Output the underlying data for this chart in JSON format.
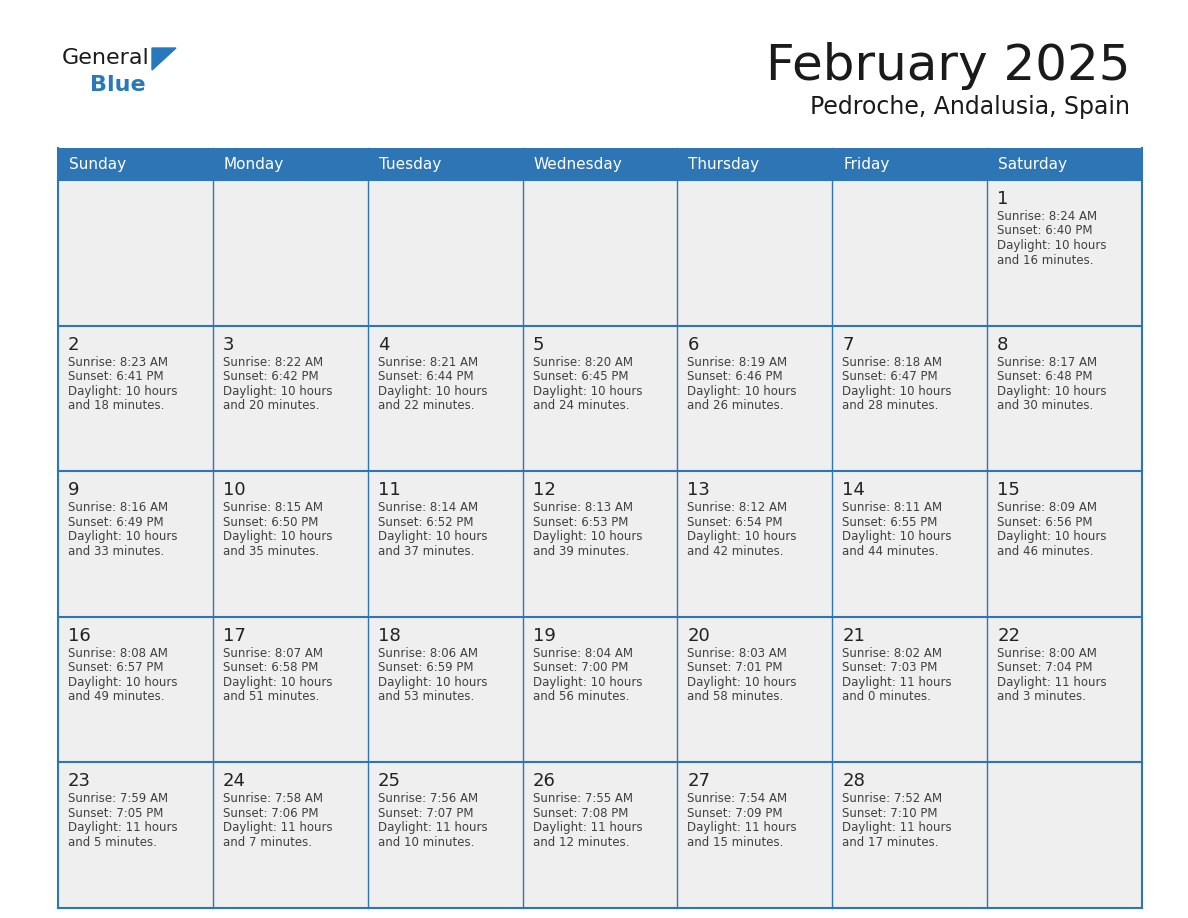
{
  "title": "February 2025",
  "subtitle": "Pedroche, Andalusia, Spain",
  "header_color": "#2E75B6",
  "header_text_color": "#FFFFFF",
  "cell_bg_color": "#EFEFEF",
  "border_color": "#2E75B6",
  "day_number_color": "#222222",
  "detail_text_color": "#404040",
  "title_color": "#1A1A1A",
  "days_of_week": [
    "Sunday",
    "Monday",
    "Tuesday",
    "Wednesday",
    "Thursday",
    "Friday",
    "Saturday"
  ],
  "logo_general_color": "#1A1A1A",
  "logo_blue_color": "#2779BD",
  "calendar_data": [
    [
      null,
      null,
      null,
      null,
      null,
      null,
      {
        "day": "1",
        "sunrise": "8:24 AM",
        "sunset": "6:40 PM",
        "daylight_line1": "Daylight: 10 hours",
        "daylight_line2": "and 16 minutes."
      }
    ],
    [
      {
        "day": "2",
        "sunrise": "8:23 AM",
        "sunset": "6:41 PM",
        "daylight_line1": "Daylight: 10 hours",
        "daylight_line2": "and 18 minutes."
      },
      {
        "day": "3",
        "sunrise": "8:22 AM",
        "sunset": "6:42 PM",
        "daylight_line1": "Daylight: 10 hours",
        "daylight_line2": "and 20 minutes."
      },
      {
        "day": "4",
        "sunrise": "8:21 AM",
        "sunset": "6:44 PM",
        "daylight_line1": "Daylight: 10 hours",
        "daylight_line2": "and 22 minutes."
      },
      {
        "day": "5",
        "sunrise": "8:20 AM",
        "sunset": "6:45 PM",
        "daylight_line1": "Daylight: 10 hours",
        "daylight_line2": "and 24 minutes."
      },
      {
        "day": "6",
        "sunrise": "8:19 AM",
        "sunset": "6:46 PM",
        "daylight_line1": "Daylight: 10 hours",
        "daylight_line2": "and 26 minutes."
      },
      {
        "day": "7",
        "sunrise": "8:18 AM",
        "sunset": "6:47 PM",
        "daylight_line1": "Daylight: 10 hours",
        "daylight_line2": "and 28 minutes."
      },
      {
        "day": "8",
        "sunrise": "8:17 AM",
        "sunset": "6:48 PM",
        "daylight_line1": "Daylight: 10 hours",
        "daylight_line2": "and 30 minutes."
      }
    ],
    [
      {
        "day": "9",
        "sunrise": "8:16 AM",
        "sunset": "6:49 PM",
        "daylight_line1": "Daylight: 10 hours",
        "daylight_line2": "and 33 minutes."
      },
      {
        "day": "10",
        "sunrise": "8:15 AM",
        "sunset": "6:50 PM",
        "daylight_line1": "Daylight: 10 hours",
        "daylight_line2": "and 35 minutes."
      },
      {
        "day": "11",
        "sunrise": "8:14 AM",
        "sunset": "6:52 PM",
        "daylight_line1": "Daylight: 10 hours",
        "daylight_line2": "and 37 minutes."
      },
      {
        "day": "12",
        "sunrise": "8:13 AM",
        "sunset": "6:53 PM",
        "daylight_line1": "Daylight: 10 hours",
        "daylight_line2": "and 39 minutes."
      },
      {
        "day": "13",
        "sunrise": "8:12 AM",
        "sunset": "6:54 PM",
        "daylight_line1": "Daylight: 10 hours",
        "daylight_line2": "and 42 minutes."
      },
      {
        "day": "14",
        "sunrise": "8:11 AM",
        "sunset": "6:55 PM",
        "daylight_line1": "Daylight: 10 hours",
        "daylight_line2": "and 44 minutes."
      },
      {
        "day": "15",
        "sunrise": "8:09 AM",
        "sunset": "6:56 PM",
        "daylight_line1": "Daylight: 10 hours",
        "daylight_line2": "and 46 minutes."
      }
    ],
    [
      {
        "day": "16",
        "sunrise": "8:08 AM",
        "sunset": "6:57 PM",
        "daylight_line1": "Daylight: 10 hours",
        "daylight_line2": "and 49 minutes."
      },
      {
        "day": "17",
        "sunrise": "8:07 AM",
        "sunset": "6:58 PM",
        "daylight_line1": "Daylight: 10 hours",
        "daylight_line2": "and 51 minutes."
      },
      {
        "day": "18",
        "sunrise": "8:06 AM",
        "sunset": "6:59 PM",
        "daylight_line1": "Daylight: 10 hours",
        "daylight_line2": "and 53 minutes."
      },
      {
        "day": "19",
        "sunrise": "8:04 AM",
        "sunset": "7:00 PM",
        "daylight_line1": "Daylight: 10 hours",
        "daylight_line2": "and 56 minutes."
      },
      {
        "day": "20",
        "sunrise": "8:03 AM",
        "sunset": "7:01 PM",
        "daylight_line1": "Daylight: 10 hours",
        "daylight_line2": "and 58 minutes."
      },
      {
        "day": "21",
        "sunrise": "8:02 AM",
        "sunset": "7:03 PM",
        "daylight_line1": "Daylight: 11 hours",
        "daylight_line2": "and 0 minutes."
      },
      {
        "day": "22",
        "sunrise": "8:00 AM",
        "sunset": "7:04 PM",
        "daylight_line1": "Daylight: 11 hours",
        "daylight_line2": "and 3 minutes."
      }
    ],
    [
      {
        "day": "23",
        "sunrise": "7:59 AM",
        "sunset": "7:05 PM",
        "daylight_line1": "Daylight: 11 hours",
        "daylight_line2": "and 5 minutes."
      },
      {
        "day": "24",
        "sunrise": "7:58 AM",
        "sunset": "7:06 PM",
        "daylight_line1": "Daylight: 11 hours",
        "daylight_line2": "and 7 minutes."
      },
      {
        "day": "25",
        "sunrise": "7:56 AM",
        "sunset": "7:07 PM",
        "daylight_line1": "Daylight: 11 hours",
        "daylight_line2": "and 10 minutes."
      },
      {
        "day": "26",
        "sunrise": "7:55 AM",
        "sunset": "7:08 PM",
        "daylight_line1": "Daylight: 11 hours",
        "daylight_line2": "and 12 minutes."
      },
      {
        "day": "27",
        "sunrise": "7:54 AM",
        "sunset": "7:09 PM",
        "daylight_line1": "Daylight: 11 hours",
        "daylight_line2": "and 15 minutes."
      },
      {
        "day": "28",
        "sunrise": "7:52 AM",
        "sunset": "7:10 PM",
        "daylight_line1": "Daylight: 11 hours",
        "daylight_line2": "and 17 minutes."
      },
      null
    ]
  ]
}
